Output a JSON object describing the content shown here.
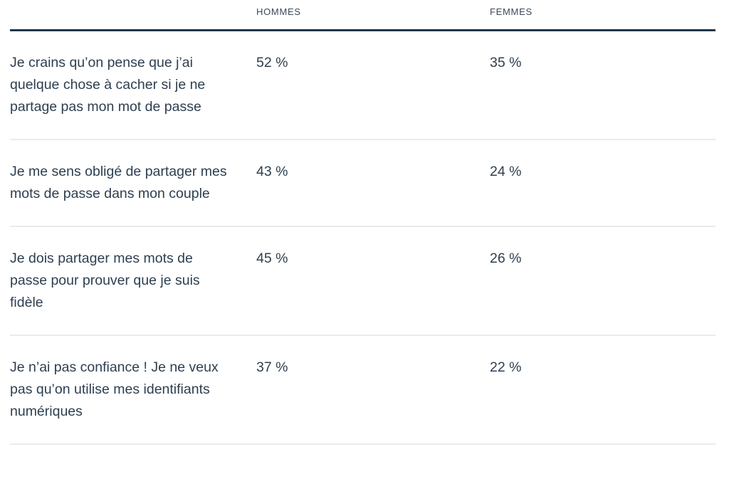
{
  "table": {
    "columns": [
      "",
      "HOMMES",
      "FEMMES"
    ],
    "rows": [
      {
        "label": "Je crains qu’on pense que j’ai quelque chose à cacher si je ne partage pas mon mot de passe",
        "hommes": "52 %",
        "femmes": "35 %"
      },
      {
        "label": "Je me sens obligé de partager mes mots de passe dans mon couple",
        "hommes": "43 %",
        "femmes": "24 %"
      },
      {
        "label": "Je dois partager mes mots de passe pour prouver que je suis fidèle",
        "hommes": "45 %",
        "femmes": "26 %"
      },
      {
        "label": "Je n’ai pas confiance ! Je ne veux pas qu’on utilise mes identifiants numériques",
        "hommes": "37 %",
        "femmes": "22 %"
      }
    ]
  },
  "chart_data": {
    "type": "table",
    "title": "",
    "categories": [
      "Je crains qu’on pense que j’ai quelque chose à cacher si je ne partage pas mon mot de passe",
      "Je me sens obligé de partager mes mots de passe dans mon couple",
      "Je dois partager mes mots de passe pour prouver que je suis fidèle",
      "Je n’ai pas confiance ! Je ne veux pas qu’on utilise mes identifiants numériques"
    ],
    "series": [
      {
        "name": "HOMMES",
        "values": [
          52,
          43,
          45,
          37
        ],
        "unit": "%"
      },
      {
        "name": "FEMMES",
        "values": [
          35,
          24,
          26,
          22
        ],
        "unit": "%"
      }
    ],
    "layout": {
      "header_rule": "thick-dark",
      "row_rule": "thin-light",
      "grid": "horizontal-only"
    }
  },
  "colors": {
    "background": "#ffffff",
    "body_text": "#2e3f50",
    "header_text": "#3b4a59",
    "header_rule": "#20364a",
    "row_divider": "#ebebeb"
  }
}
